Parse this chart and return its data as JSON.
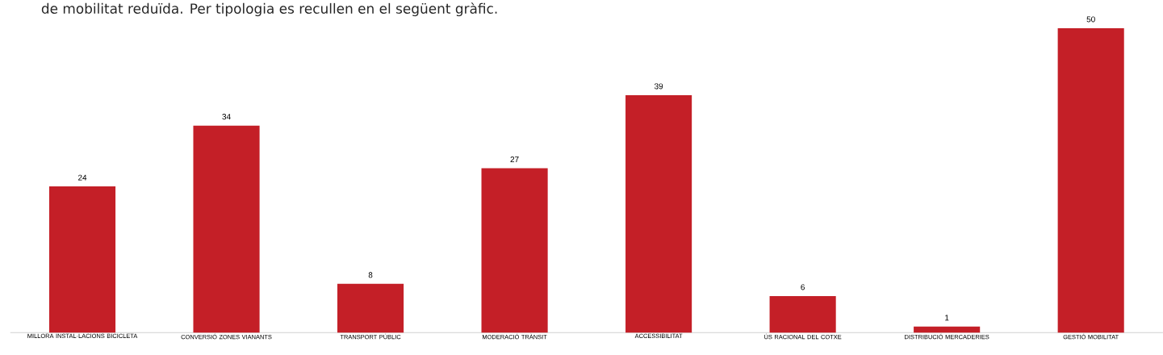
{
  "chart_data": {
    "type": "bar",
    "title": "de mobilitat reduïda. Per tipologia es recullen en el següent gràfic.",
    "categories": [
      "MILLORA INSTAL·LACIONS BICICLETA",
      "CONVERSIÓ ZONES VIANANTS",
      "TRANSPORT PÚBLIC",
      "MODERACIÓ TRÀNSIT",
      "ACCESSIBILITAT",
      "ÚS RACIONAL DEL COTXE",
      "DISTRIBUCIÓ MERCADERIES",
      "GESTIÓ MOBILITAT"
    ],
    "values": [
      24,
      34,
      8,
      27,
      39,
      6,
      1,
      50
    ],
    "color": "#c41f27",
    "data_labels": true,
    "tick_labels": "x"
  }
}
